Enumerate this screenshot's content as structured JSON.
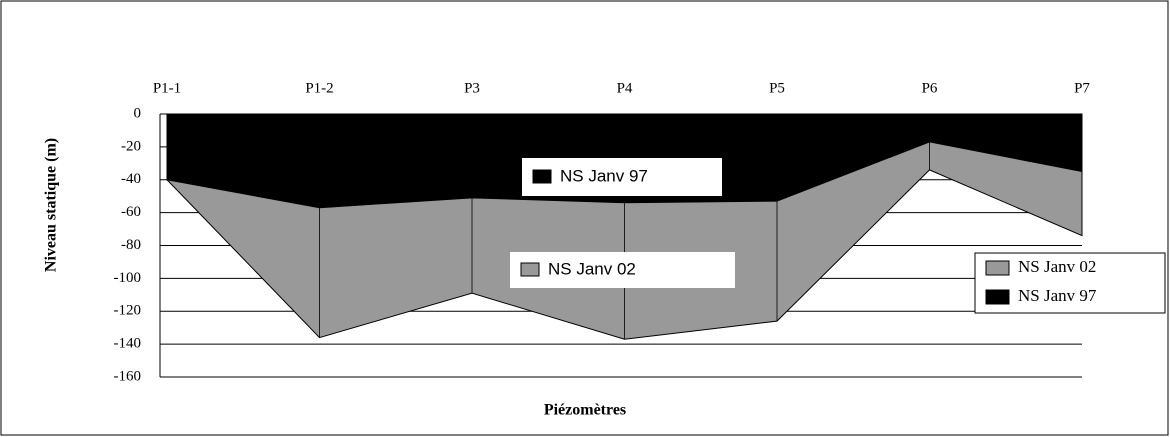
{
  "chart_data": {
    "type": "area",
    "x_label": "Piézomètres",
    "y_label": "Niveau statique (m)",
    "categories": [
      "P1-1",
      "P1-2",
      "P3",
      "P4",
      "P5",
      "P6",
      "P7"
    ],
    "series": [
      {
        "name": "NS Janv 02",
        "color": "#999999",
        "values": [
          -40,
          -136,
          -109,
          -137,
          -126,
          -34,
          -74
        ]
      },
      {
        "name": "NS Janv 97",
        "color": "#000000",
        "values": [
          -40,
          -57,
          -51,
          -54,
          -53,
          -17,
          -35
        ]
      }
    ],
    "ylim": [
      -160,
      0
    ],
    "yticks": [
      0,
      -20,
      -40,
      -60,
      -80,
      -100,
      -120,
      -140,
      -160
    ],
    "grid": true,
    "legend": "right"
  }
}
